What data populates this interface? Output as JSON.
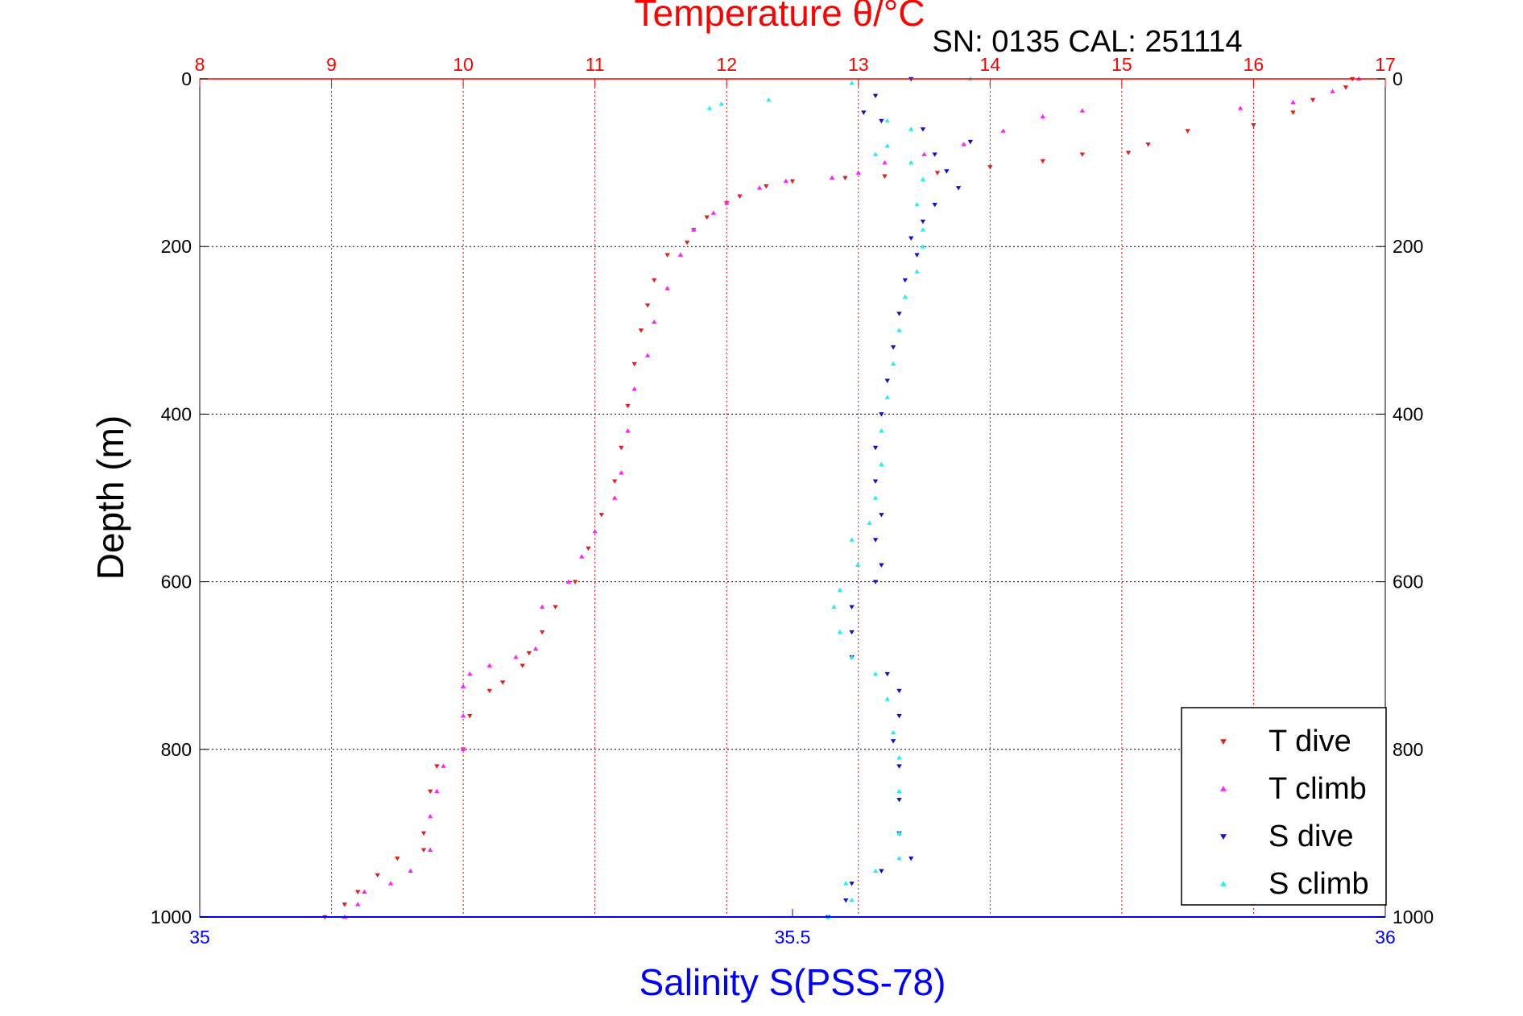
{
  "colors": {
    "temperature_axis": "#ff0000",
    "salinity_axis": "#0000ff",
    "depth_axis": "#000000",
    "grid": "#000000",
    "t_dive": "#e0201c",
    "t_climb": "#ff22ff",
    "s_dive": "#1010c8",
    "s_climb": "#22f0f0"
  },
  "chart_data": {
    "type": "scatter",
    "title": "Temperature θ/°C",
    "subtitle": "SN: 0135  CAL: 251114",
    "ylabel": "Depth (m)",
    "xlabel_bottom": "Salinity S(PSS-78)",
    "xlabel_top": "Temperature θ/°C",
    "ylim": [
      0,
      1000
    ],
    "y_reversed": true,
    "xlim_temperature": [
      8,
      17
    ],
    "xlim_salinity": [
      35,
      36
    ],
    "depth_ticks": [
      "0",
      "200",
      "400",
      "600",
      "800",
      "1000"
    ],
    "temperature_ticks": [
      "8",
      "9",
      "10",
      "11",
      "12",
      "13",
      "14",
      "15",
      "16",
      "17"
    ],
    "salinity_ticks": [
      "35",
      "35.5",
      "36"
    ],
    "grid": true,
    "legend_position": "bottom-right",
    "legend": [
      "T dive",
      "T climb",
      "S dive",
      "S climb"
    ],
    "series": [
      {
        "name": "T dive",
        "axis": "temperature",
        "marker": "triangle-down",
        "points": [
          [
            16.75,
            0
          ],
          [
            16.7,
            10
          ],
          [
            16.45,
            25
          ],
          [
            16.3,
            40
          ],
          [
            16.0,
            55
          ],
          [
            15.5,
            62
          ],
          [
            15.2,
            78
          ],
          [
            15.05,
            88
          ],
          [
            14.7,
            90
          ],
          [
            14.4,
            98
          ],
          [
            14.0,
            105
          ],
          [
            13.6,
            112
          ],
          [
            13.2,
            116
          ],
          [
            12.9,
            118
          ],
          [
            12.5,
            122
          ],
          [
            12.3,
            128
          ],
          [
            12.1,
            140
          ],
          [
            12.0,
            148
          ],
          [
            11.85,
            165
          ],
          [
            11.75,
            180
          ],
          [
            11.7,
            195
          ],
          [
            11.55,
            210
          ],
          [
            11.45,
            240
          ],
          [
            11.4,
            270
          ],
          [
            11.35,
            300
          ],
          [
            11.3,
            340
          ],
          [
            11.25,
            390
          ],
          [
            11.2,
            440
          ],
          [
            11.15,
            480
          ],
          [
            11.05,
            520
          ],
          [
            10.95,
            560
          ],
          [
            10.85,
            600
          ],
          [
            10.7,
            630
          ],
          [
            10.6,
            660
          ],
          [
            10.5,
            685
          ],
          [
            10.45,
            700
          ],
          [
            10.3,
            720
          ],
          [
            10.2,
            730
          ],
          [
            10.05,
            760
          ],
          [
            10.0,
            800
          ],
          [
            9.8,
            820
          ],
          [
            9.75,
            850
          ],
          [
            9.7,
            900
          ],
          [
            9.7,
            920
          ],
          [
            9.5,
            930
          ],
          [
            9.35,
            950
          ],
          [
            9.2,
            970
          ],
          [
            9.1,
            985
          ],
          [
            8.95,
            1000
          ]
        ]
      },
      {
        "name": "T climb",
        "axis": "temperature",
        "marker": "triangle-up",
        "points": [
          [
            16.8,
            0
          ],
          [
            16.6,
            15
          ],
          [
            16.3,
            28
          ],
          [
            15.9,
            35
          ],
          [
            14.7,
            38
          ],
          [
            14.4,
            45
          ],
          [
            14.1,
            62
          ],
          [
            13.8,
            78
          ],
          [
            13.5,
            90
          ],
          [
            13.2,
            100
          ],
          [
            13.0,
            112
          ],
          [
            12.8,
            118
          ],
          [
            12.45,
            122
          ],
          [
            12.25,
            130
          ],
          [
            12.0,
            148
          ],
          [
            11.9,
            160
          ],
          [
            11.75,
            180
          ],
          [
            11.65,
            210
          ],
          [
            11.55,
            250
          ],
          [
            11.45,
            290
          ],
          [
            11.4,
            330
          ],
          [
            11.3,
            370
          ],
          [
            11.25,
            420
          ],
          [
            11.2,
            470
          ],
          [
            11.15,
            500
          ],
          [
            11.0,
            540
          ],
          [
            10.9,
            570
          ],
          [
            10.8,
            600
          ],
          [
            10.6,
            630
          ],
          [
            10.55,
            680
          ],
          [
            10.4,
            690
          ],
          [
            10.2,
            700
          ],
          [
            10.05,
            710
          ],
          [
            10.0,
            725
          ],
          [
            10.0,
            760
          ],
          [
            10.0,
            800
          ],
          [
            9.85,
            820
          ],
          [
            9.8,
            850
          ],
          [
            9.75,
            880
          ],
          [
            9.75,
            920
          ],
          [
            9.6,
            945
          ],
          [
            9.45,
            960
          ],
          [
            9.25,
            970
          ],
          [
            9.2,
            985
          ],
          [
            9.1,
            1000
          ]
        ]
      },
      {
        "name": "S dive",
        "axis": "salinity",
        "marker": "triangle-down",
        "points": [
          [
            35.6,
            0
          ],
          [
            35.57,
            20
          ],
          [
            35.56,
            40
          ],
          [
            35.575,
            50
          ],
          [
            35.61,
            60
          ],
          [
            35.65,
            75
          ],
          [
            35.62,
            90
          ],
          [
            35.63,
            110
          ],
          [
            35.64,
            130
          ],
          [
            35.62,
            150
          ],
          [
            35.61,
            170
          ],
          [
            35.6,
            190
          ],
          [
            35.605,
            210
          ],
          [
            35.595,
            240
          ],
          [
            35.59,
            280
          ],
          [
            35.585,
            320
          ],
          [
            35.58,
            360
          ],
          [
            35.575,
            400
          ],
          [
            35.57,
            440
          ],
          [
            35.57,
            480
          ],
          [
            35.575,
            520
          ],
          [
            35.57,
            550
          ],
          [
            35.575,
            580
          ],
          [
            35.57,
            600
          ],
          [
            35.55,
            630
          ],
          [
            35.55,
            660
          ],
          [
            35.55,
            690
          ],
          [
            35.58,
            710
          ],
          [
            35.59,
            730
          ],
          [
            35.59,
            760
          ],
          [
            35.585,
            790
          ],
          [
            35.59,
            820
          ],
          [
            35.59,
            860
          ],
          [
            35.59,
            900
          ],
          [
            35.6,
            930
          ],
          [
            35.575,
            945
          ],
          [
            35.55,
            960
          ],
          [
            35.545,
            980
          ],
          [
            35.53,
            1000
          ]
        ]
      },
      {
        "name": "S climb",
        "axis": "salinity",
        "marker": "triangle-up",
        "points": [
          [
            35.65,
            0
          ],
          [
            35.55,
            5
          ],
          [
            35.48,
            25
          ],
          [
            35.44,
            30
          ],
          [
            35.43,
            35
          ],
          [
            35.58,
            50
          ],
          [
            35.6,
            60
          ],
          [
            35.58,
            80
          ],
          [
            35.57,
            90
          ],
          [
            35.6,
            100
          ],
          [
            35.61,
            120
          ],
          [
            35.605,
            150
          ],
          [
            35.61,
            180
          ],
          [
            35.61,
            200
          ],
          [
            35.605,
            230
          ],
          [
            35.595,
            260
          ],
          [
            35.59,
            300
          ],
          [
            35.585,
            340
          ],
          [
            35.58,
            380
          ],
          [
            35.575,
            420
          ],
          [
            35.575,
            460
          ],
          [
            35.57,
            500
          ],
          [
            35.565,
            530
          ],
          [
            35.55,
            550
          ],
          [
            35.555,
            580
          ],
          [
            35.54,
            610
          ],
          [
            35.535,
            630
          ],
          [
            35.54,
            660
          ],
          [
            35.55,
            690
          ],
          [
            35.57,
            710
          ],
          [
            35.58,
            740
          ],
          [
            35.585,
            780
          ],
          [
            35.59,
            810
          ],
          [
            35.59,
            850
          ],
          [
            35.59,
            900
          ],
          [
            35.59,
            930
          ],
          [
            35.57,
            945
          ],
          [
            35.545,
            960
          ],
          [
            35.55,
            980
          ],
          [
            35.53,
            1000
          ]
        ]
      }
    ]
  }
}
